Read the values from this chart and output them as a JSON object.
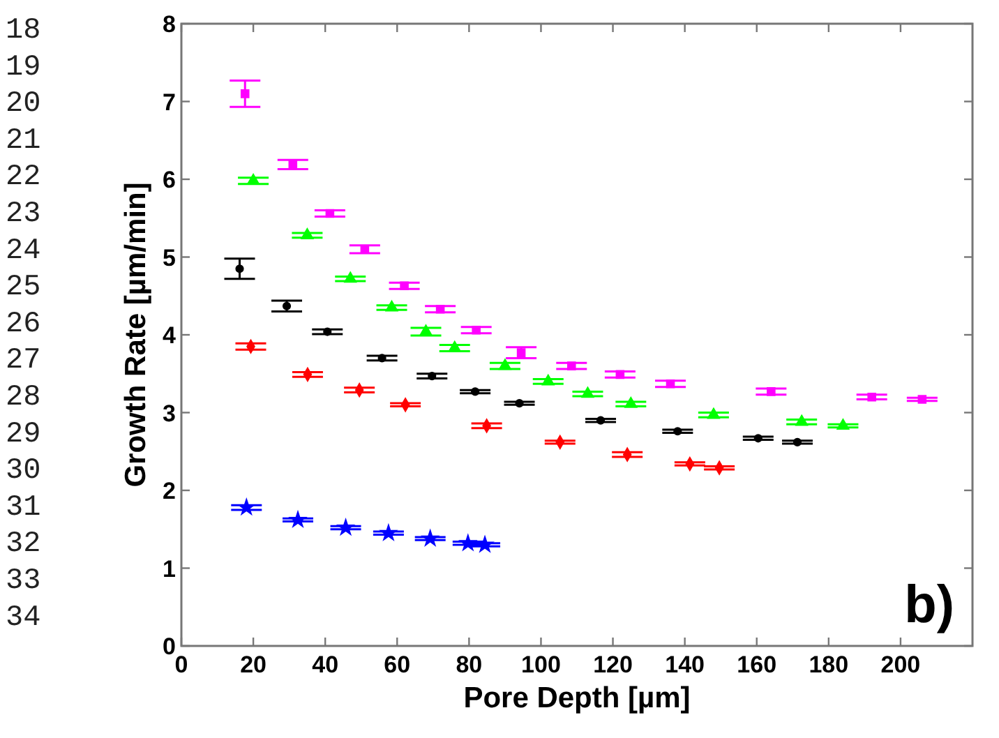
{
  "chart_data": {
    "type": "scatter",
    "xlabel": "Pore Depth [µm]",
    "ylabel": "Growth Rate [µm/min]",
    "xlim": [
      0,
      220
    ],
    "xticks": [
      0,
      20,
      40,
      60,
      80,
      100,
      120,
      140,
      160,
      180,
      200
    ],
    "ylim": [
      0,
      8
    ],
    "yticks": [
      0,
      1,
      2,
      3,
      4,
      5,
      6,
      7,
      8
    ],
    "grid": false,
    "annotations": [
      "b)",
      "18",
      "19",
      "20",
      "21",
      "22",
      "23",
      "24",
      "25",
      "26",
      "27",
      "28",
      "29",
      "30",
      "31",
      "32",
      "33",
      "34"
    ],
    "series": [
      {
        "color": "#ff00ff",
        "marker": "square",
        "x": [
          17.7,
          31,
          41.3,
          51,
          62,
          72,
          82,
          94.5,
          108.5,
          122,
          136,
          164,
          192,
          206
        ],
        "values": [
          7.1,
          6.19,
          5.56,
          5.1,
          4.63,
          4.33,
          4.06,
          3.77,
          3.6,
          3.49,
          3.37,
          3.27,
          3.2,
          3.17
        ],
        "errors": [
          0.17,
          0.06,
          0.04,
          0.05,
          0.04,
          0.04,
          0.04,
          0.07,
          0.04,
          0.04,
          0.04,
          0.04,
          0.03,
          0.02
        ]
      },
      {
        "color": "#00ff00",
        "marker": "triangle",
        "x": [
          20,
          35,
          47,
          58.5,
          68,
          76,
          90,
          102,
          113,
          125,
          148,
          172.5,
          184
        ],
        "values": [
          5.98,
          5.28,
          4.72,
          4.35,
          4.04,
          3.83,
          3.6,
          3.4,
          3.24,
          3.11,
          2.97,
          2.88,
          2.83
        ],
        "errors": [
          0.04,
          0.03,
          0.03,
          0.03,
          0.05,
          0.04,
          0.04,
          0.03,
          0.03,
          0.03,
          0.03,
          0.03,
          0.02
        ]
      },
      {
        "color": "#000000",
        "marker": "circle",
        "x": [
          16.2,
          29.3,
          40.6,
          55.8,
          69.7,
          81.7,
          94,
          116.6,
          138,
          160.4,
          171.3
        ],
        "values": [
          4.85,
          4.37,
          4.04,
          3.7,
          3.47,
          3.27,
          3.12,
          2.9,
          2.76,
          2.67,
          2.62
        ],
        "errors": [
          0.13,
          0.07,
          0.03,
          0.03,
          0.03,
          0.02,
          0.02,
          0.02,
          0.02,
          0.02,
          0.02
        ]
      },
      {
        "color": "#ff0000",
        "marker": "diamond",
        "x": [
          19.3,
          35.1,
          49.5,
          62.3,
          84.9,
          105.3,
          124,
          141.4,
          149.6
        ],
        "values": [
          3.85,
          3.49,
          3.29,
          3.1,
          2.83,
          2.62,
          2.46,
          2.34,
          2.29
        ],
        "errors": [
          0.04,
          0.03,
          0.03,
          0.02,
          0.03,
          0.02,
          0.03,
          0.02,
          0.02
        ]
      },
      {
        "color": "#0000ff",
        "marker": "star",
        "x": [
          18.1,
          32.4,
          45.7,
          57.6,
          69.2,
          79.7,
          84.4
        ],
        "values": [
          1.78,
          1.62,
          1.52,
          1.45,
          1.38,
          1.32,
          1.3
        ],
        "errors": [
          0.03,
          0.02,
          0.02,
          0.02,
          0.02,
          0.02,
          0.02
        ]
      }
    ]
  }
}
